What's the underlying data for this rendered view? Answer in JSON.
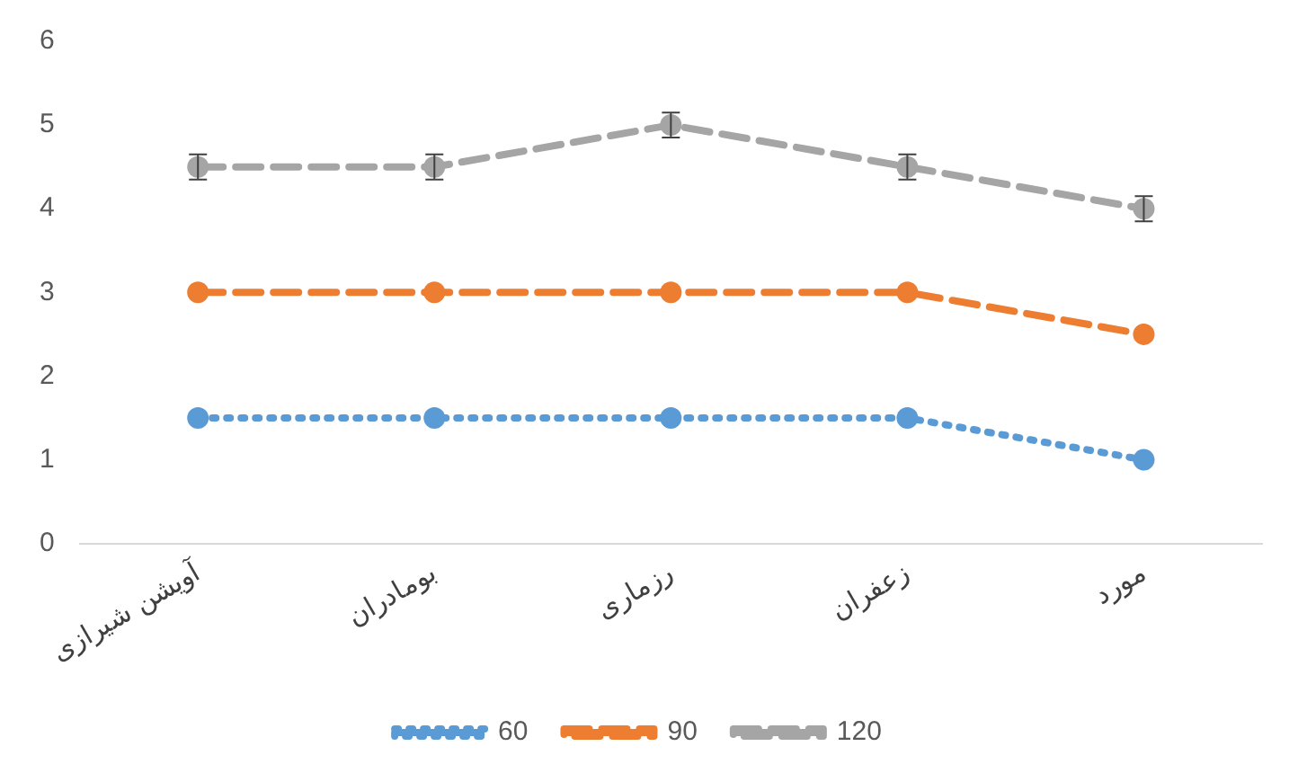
{
  "chart_data": {
    "type": "line",
    "categories": [
      "آویشن شیرازی",
      "بومادران",
      "رزماری",
      "زعفران",
      "مورد"
    ],
    "series": [
      {
        "name": "60",
        "color": "#5b9bd5",
        "values": [
          1.5,
          1.5,
          1.5,
          1.5,
          1
        ],
        "line_style": "dotted"
      },
      {
        "name": "90",
        "color": "#ed7d31",
        "values": [
          3,
          3,
          3,
          3,
          2.5
        ],
        "line_style": "dashed"
      },
      {
        "name": "120",
        "color": "#a5a5a5",
        "values": [
          4.5,
          4.5,
          5,
          4.5,
          4
        ],
        "line_style": "dashed",
        "errors": [
          0.15,
          0.15,
          0.15,
          0.15,
          0.15
        ]
      }
    ],
    "ylim": [
      0,
      6
    ],
    "yticks": [
      0,
      1,
      2,
      3,
      4,
      5,
      6
    ],
    "grid": false,
    "legend": "bottom",
    "marker": "circle"
  }
}
